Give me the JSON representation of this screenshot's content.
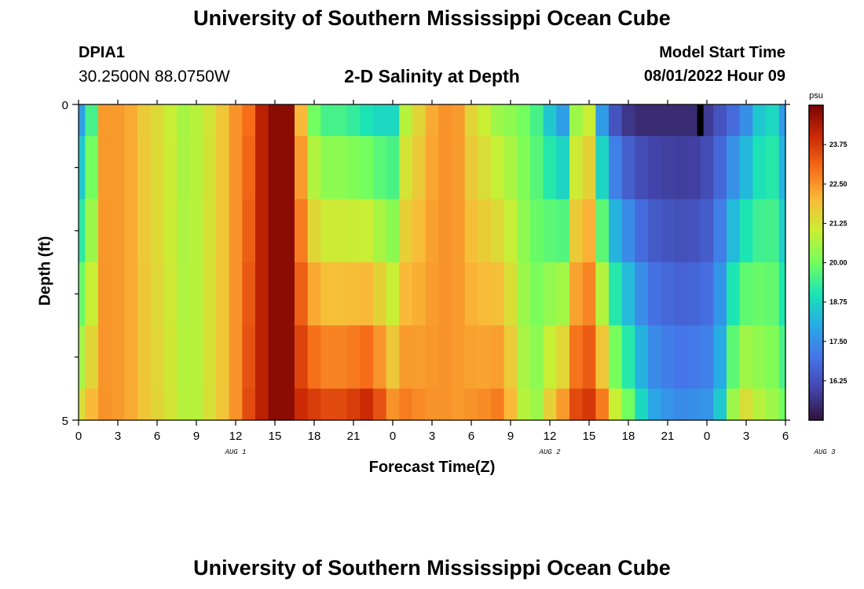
{
  "header": {
    "title": "University of Southern Mississippi Ocean Cube",
    "station_id": "DPIA1",
    "coordinates": "30.2500N  88.0750W",
    "plot_title": "2-D Salinity at Depth",
    "start_label": "Model Start Time",
    "start_value": "08/01/2022 Hour 09"
  },
  "footer": {
    "title": "University of Southern Mississippi Ocean Cube"
  },
  "chart_data": {
    "type": "heatmap",
    "title": "2-D Salinity at Depth",
    "xlabel": "Forecast Time(Z)",
    "ylabel": "Depth (ft)",
    "x_tick_labels": [
      "0",
      "3",
      "6",
      "9",
      "12",
      "15",
      "18",
      "21",
      "0",
      "3",
      "6",
      "9",
      "12",
      "15",
      "18",
      "21",
      "0",
      "3",
      "6"
    ],
    "date_labels": [
      {
        "text": "AUG 1",
        "hour": 12
      },
      {
        "text": "AUG 2",
        "hour": 36
      },
      {
        "text": "AUG 3",
        "hour": 57
      }
    ],
    "xlim_hours": [
      0,
      54
    ],
    "ylim": [
      0,
      5
    ],
    "y_tick_labels": [
      {
        "value": 0,
        "text": "0"
      },
      {
        "value": 5,
        "text": "5"
      }
    ],
    "y_minor_ticks": [
      1,
      2,
      3,
      4
    ],
    "depth_bands": [
      0,
      0.5,
      1.5,
      2.5,
      3.5,
      4.5,
      5
    ],
    "colorbar": {
      "unit": "psu",
      "range": [
        15.0,
        25.0
      ],
      "tick_values": [
        16.25,
        17.5,
        18.75,
        20.0,
        21.25,
        22.5,
        23.75
      ],
      "tick_labels": [
        "16.25",
        "17.50",
        "18.75",
        "20.00",
        "21.25",
        "22.50",
        "23.75"
      ]
    },
    "missing_marker": {
      "hour": 47.5,
      "depth_to": 0.5
    },
    "profile_hours": [
      0,
      1,
      2,
      3,
      4,
      5,
      6,
      7,
      8,
      9,
      10,
      11,
      12,
      13,
      14,
      15,
      16,
      17,
      18,
      19,
      20,
      21,
      22,
      23,
      24,
      25,
      26,
      27,
      28,
      29,
      30,
      31,
      32,
      33,
      34,
      35,
      36,
      37,
      38,
      39,
      40,
      41,
      42,
      43,
      44,
      45,
      46,
      47,
      48,
      49,
      50,
      51,
      52,
      53,
      54
    ],
    "surface_values": [
      17.8,
      19.5,
      22.4,
      22.4,
      22.2,
      21.7,
      21.4,
      21.0,
      20.6,
      20.8,
      21.2,
      21.8,
      22.5,
      23.0,
      24.2,
      24.8,
      24.8,
      22.0,
      20.0,
      19.5,
      19.5,
      19.3,
      19.0,
      18.8,
      18.8,
      20.8,
      21.5,
      22.2,
      22.5,
      22.4,
      21.5,
      21.0,
      20.5,
      20.3,
      20.0,
      19.5,
      18.5,
      17.8,
      20.5,
      21.0,
      17.7,
      16.3,
      15.7,
      15.5,
      15.5,
      15.5,
      15.5,
      15.5,
      15.8,
      16.3,
      16.8,
      17.5,
      18.5,
      18.8,
      17.7
    ],
    "bottom_values": [
      21.3,
      22.0,
      22.5,
      22.4,
      22.2,
      21.8,
      21.5,
      21.2,
      20.8,
      20.8,
      21.3,
      21.8,
      22.5,
      23.5,
      24.2,
      24.8,
      24.8,
      24.0,
      23.7,
      23.5,
      23.5,
      23.7,
      24.0,
      23.4,
      22.5,
      22.8,
      22.6,
      22.5,
      22.5,
      22.4,
      22.5,
      22.6,
      22.8,
      22.0,
      20.8,
      20.5,
      21.6,
      22.4,
      23.5,
      23.8,
      22.8,
      21.0,
      20.0,
      18.8,
      17.9,
      17.6,
      17.4,
      17.5,
      17.6,
      18.5,
      20.5,
      21.3,
      20.8,
      20.5,
      20.0
    ]
  }
}
